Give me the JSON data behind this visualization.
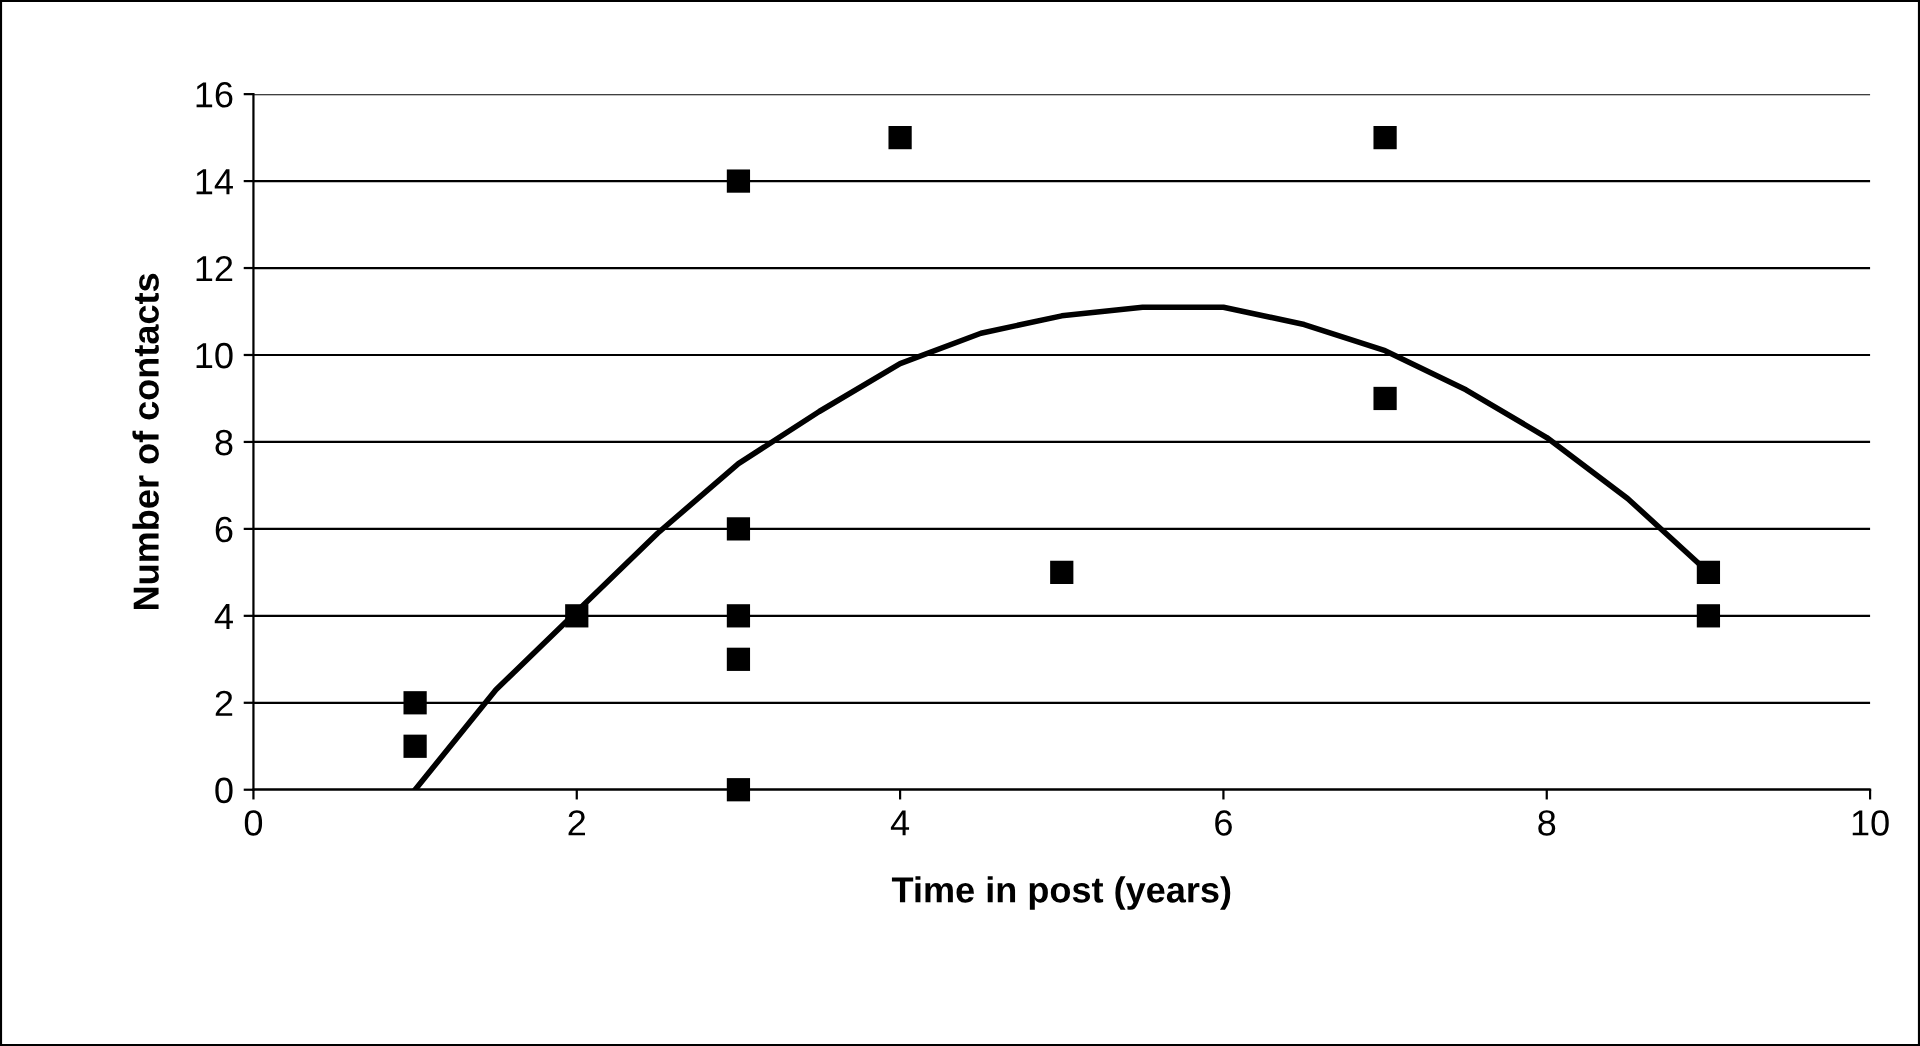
{
  "chart_data": {
    "type": "scatter",
    "xlabel": "Time in post (years)",
    "ylabel": "Number of contacts",
    "xlim": [
      0,
      10
    ],
    "xticks": [
      0,
      2,
      4,
      6,
      8,
      10
    ],
    "ylim": [
      0,
      16
    ],
    "yticks": [
      0,
      2,
      4,
      6,
      8,
      10,
      12,
      14,
      16
    ],
    "grid": "y",
    "legend": false,
    "series": [
      {
        "color": "#000000",
        "marker": "square",
        "x": [
          1,
          1,
          2,
          3,
          3,
          3,
          3,
          3,
          4,
          5,
          7,
          7,
          9,
          9
        ],
        "values": [
          2,
          1,
          4,
          14,
          6,
          4,
          3,
          0,
          15,
          5,
          15,
          9,
          5,
          4
        ]
      },
      {
        "type": "line",
        "color": "#000000",
        "marker": "none",
        "line_style": "solid",
        "x": [
          1,
          1.5,
          2,
          2.5,
          3,
          3.5,
          4,
          4.5,
          5,
          5.5,
          6,
          6.5,
          7,
          7.5,
          8,
          8.5,
          9
        ],
        "values": [
          0,
          2.3,
          4.1,
          5.9,
          7.5,
          8.7,
          9.8,
          10.5,
          10.9,
          11.1,
          11.1,
          10.7,
          10.1,
          9.2,
          8.1,
          6.7,
          5.0
        ]
      }
    ]
  }
}
